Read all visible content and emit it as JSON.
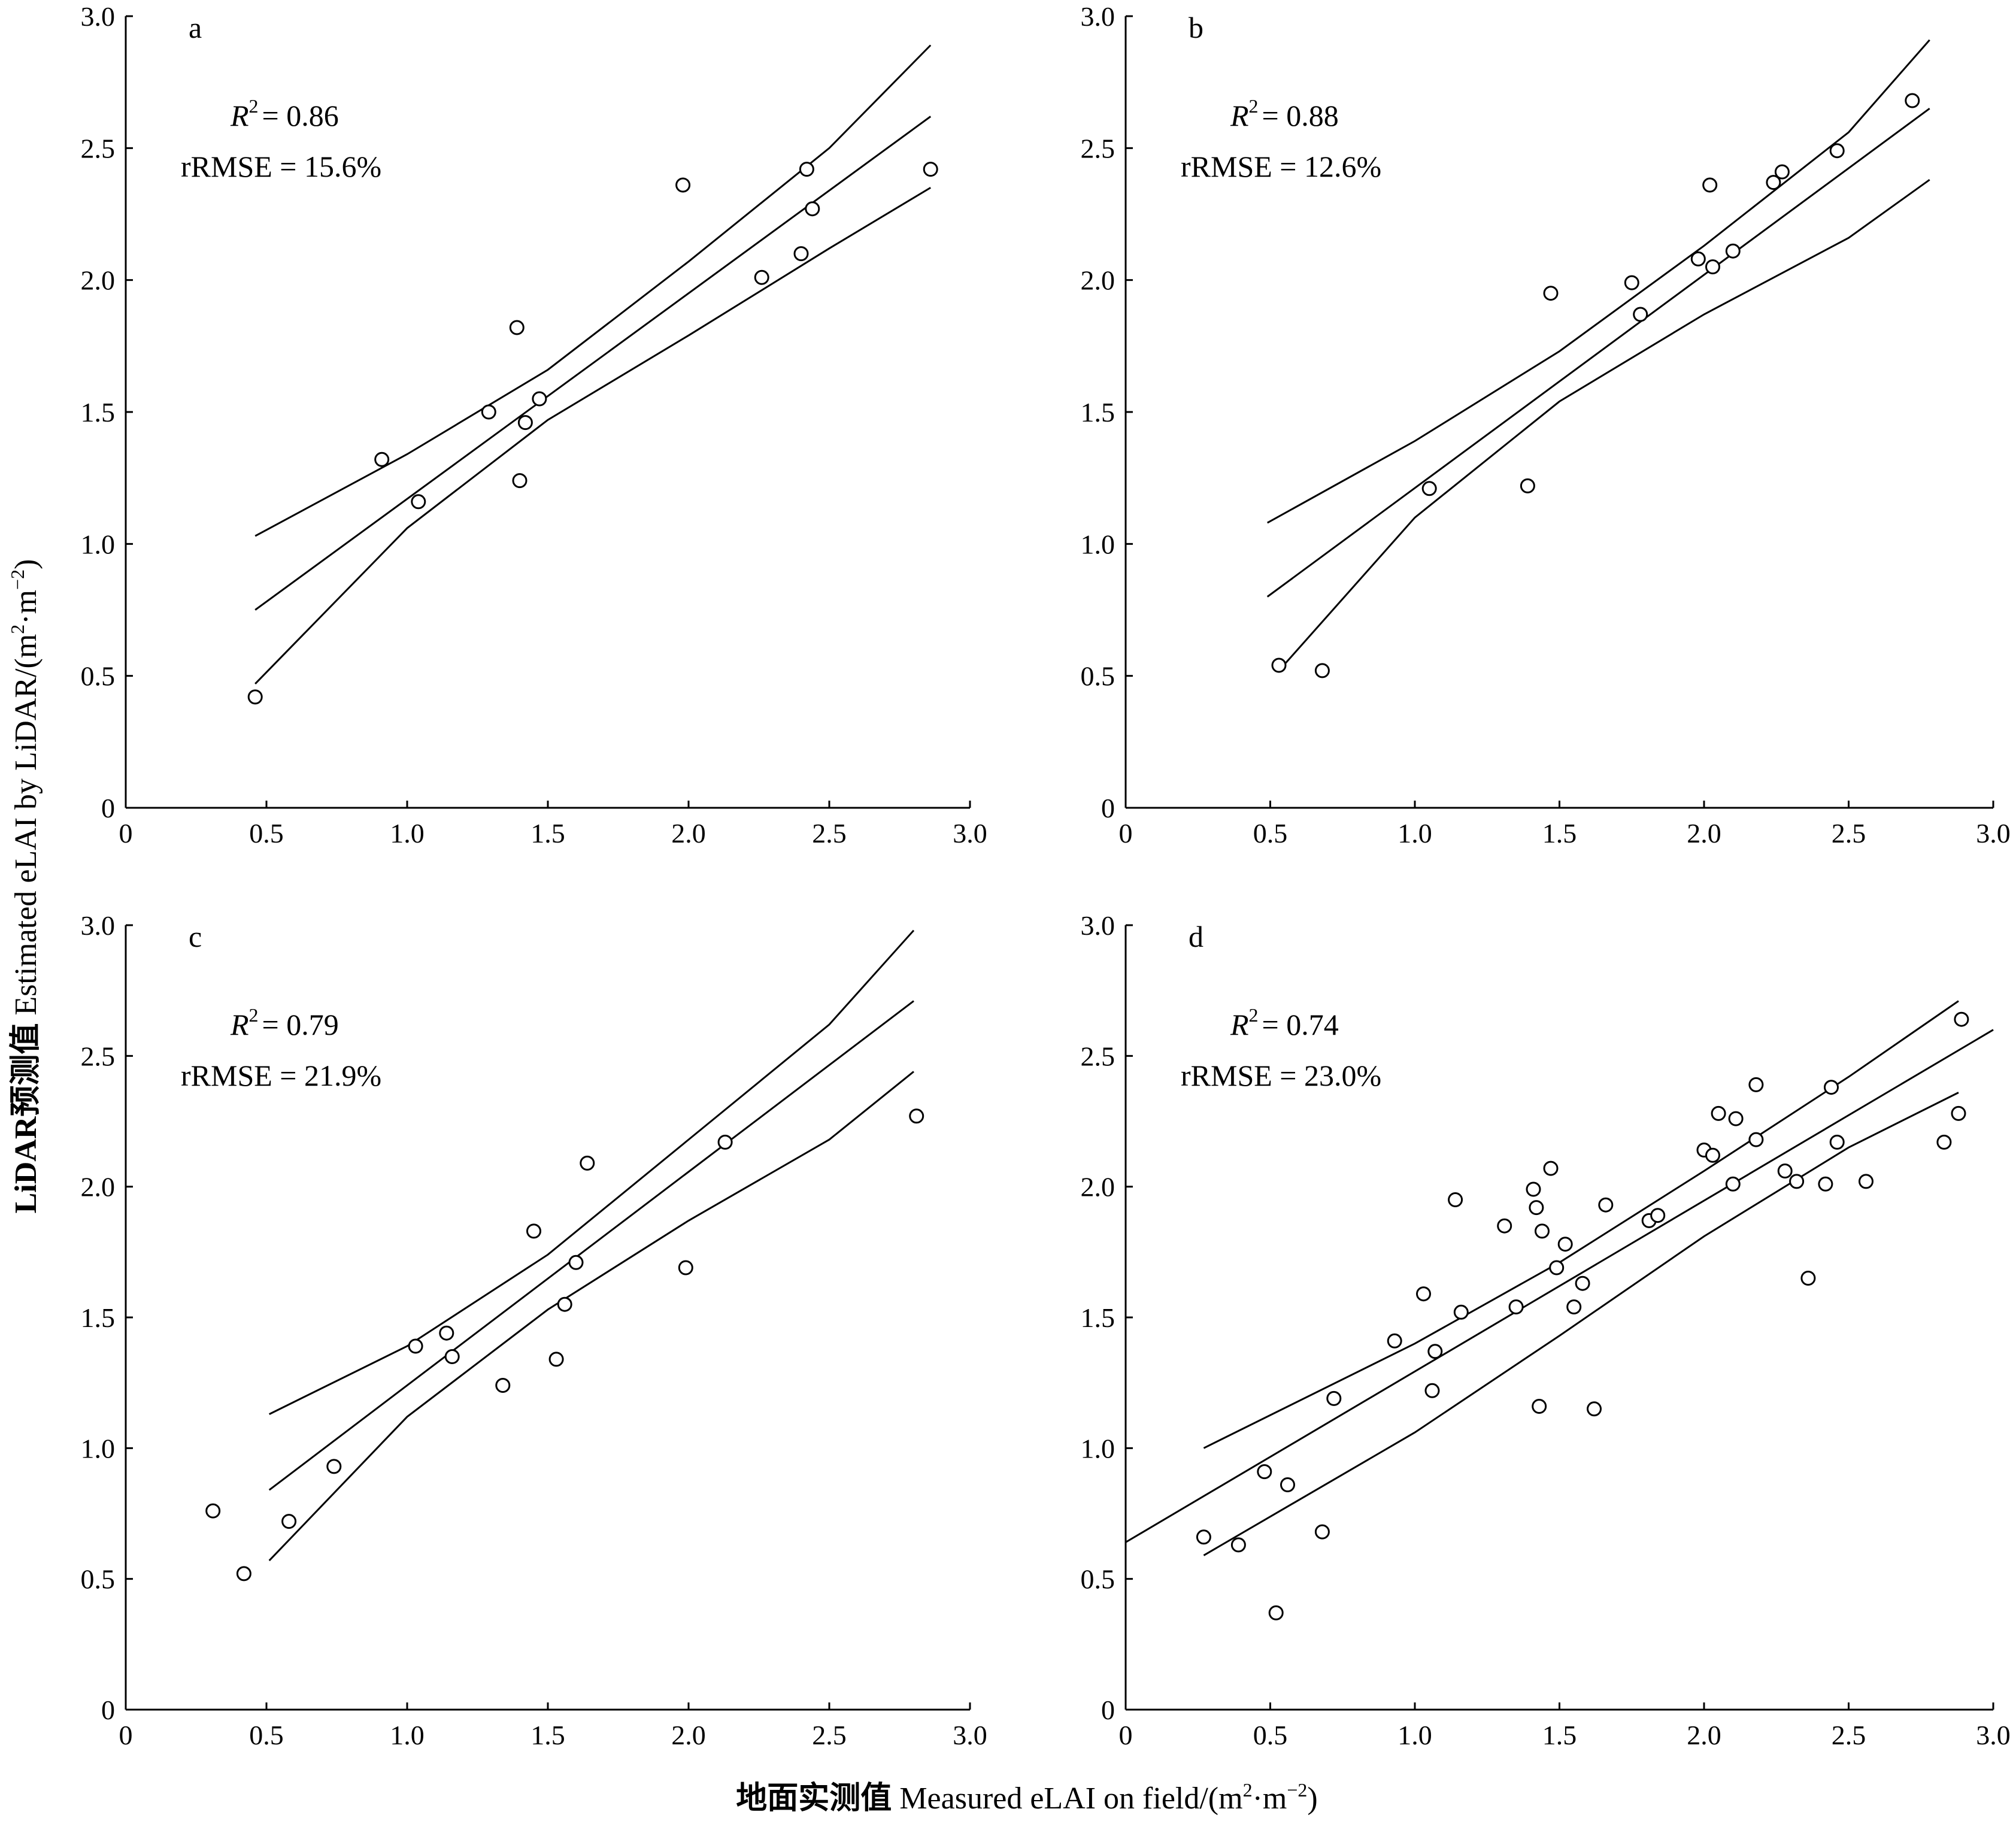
{
  "figure": {
    "xlabel_cn": "地面实测值",
    "xlabel_en": "Measured eLAI on field/(m",
    "ylabel_cn": "LiDAR预测值",
    "ylabel_en": "Estimated eLAI by LiDAR/(m",
    "unit_mid": "·m",
    "unit_sup": "2",
    "unit_sup_neg": "−2",
    "unit_close": ")"
  },
  "chart_data": [
    {
      "type": "scatter",
      "panel": "a",
      "r2_label": "R",
      "r2_value": "= 0.86",
      "rrmse": "rRMSE = 15.6%",
      "xlim": [
        0,
        3.0
      ],
      "ylim": [
        0,
        3.0
      ],
      "x_ticks": [
        "0",
        "0.5",
        "1.0",
        "1.5",
        "2.0",
        "2.5",
        "3.0"
      ],
      "y_ticks": [
        "0",
        "0.5",
        "1.0",
        "1.5",
        "2.0",
        "2.5",
        "3.0"
      ],
      "points": [
        [
          0.46,
          0.42
        ],
        [
          0.91,
          1.32
        ],
        [
          1.04,
          1.16
        ],
        [
          1.29,
          1.5
        ],
        [
          1.39,
          1.82
        ],
        [
          1.4,
          1.24
        ],
        [
          1.42,
          1.46
        ],
        [
          1.47,
          1.55
        ],
        [
          1.98,
          2.36
        ],
        [
          2.26,
          2.01
        ],
        [
          2.4,
          2.1
        ],
        [
          2.42,
          2.42
        ],
        [
          2.44,
          2.27
        ],
        [
          2.86,
          2.42
        ]
      ],
      "fit_line": [
        [
          0.46,
          0.75
        ],
        [
          2.86,
          2.62
        ]
      ],
      "upper_band": [
        [
          0.46,
          1.03
        ],
        [
          1.0,
          1.34
        ],
        [
          1.5,
          1.66
        ],
        [
          2.0,
          2.07
        ],
        [
          2.5,
          2.5
        ],
        [
          2.86,
          2.89
        ]
      ],
      "lower_band": [
        [
          0.46,
          0.47
        ],
        [
          1.0,
          1.06
        ],
        [
          1.5,
          1.47
        ],
        [
          2.0,
          1.79
        ],
        [
          2.5,
          2.12
        ],
        [
          2.86,
          2.35
        ]
      ]
    },
    {
      "type": "scatter",
      "panel": "b",
      "r2_label": "R",
      "r2_value": "= 0.88",
      "rrmse": "rRMSE = 12.6%",
      "xlim": [
        0,
        3.0
      ],
      "ylim": [
        0,
        3.0
      ],
      "x_ticks": [
        "0",
        "0.5",
        "1.0",
        "1.5",
        "2.0",
        "2.5",
        "3.0"
      ],
      "y_ticks": [
        "0",
        "0.5",
        "1.0",
        "1.5",
        "2.0",
        "2.5",
        "3.0"
      ],
      "points": [
        [
          0.53,
          0.54
        ],
        [
          0.68,
          0.52
        ],
        [
          1.05,
          1.21
        ],
        [
          1.39,
          1.22
        ],
        [
          1.47,
          1.95
        ],
        [
          1.75,
          1.99
        ],
        [
          1.78,
          1.87
        ],
        [
          1.98,
          2.08
        ],
        [
          2.02,
          2.36
        ],
        [
          2.03,
          2.05
        ],
        [
          2.1,
          2.11
        ],
        [
          2.24,
          2.37
        ],
        [
          2.27,
          2.41
        ],
        [
          2.46,
          2.49
        ],
        [
          2.72,
          2.68
        ]
      ],
      "fit_line": [
        [
          0.49,
          0.8
        ],
        [
          2.78,
          2.65
        ]
      ],
      "upper_band": [
        [
          0.49,
          1.08
        ],
        [
          1.0,
          1.39
        ],
        [
          1.5,
          1.73
        ],
        [
          2.0,
          2.13
        ],
        [
          2.5,
          2.56
        ],
        [
          2.78,
          2.91
        ]
      ],
      "lower_band": [
        [
          0.53,
          0.52
        ],
        [
          1.0,
          1.1
        ],
        [
          1.5,
          1.54
        ],
        [
          2.0,
          1.87
        ],
        [
          2.5,
          2.16
        ],
        [
          2.78,
          2.38
        ]
      ]
    },
    {
      "type": "scatter",
      "panel": "c",
      "r2_label": "R",
      "r2_value": "= 0.79",
      "rrmse": "rRMSE = 21.9%",
      "xlim": [
        0,
        3.0
      ],
      "ylim": [
        0,
        3.0
      ],
      "x_ticks": [
        "0",
        "0.5",
        "1.0",
        "1.5",
        "2.0",
        "2.5",
        "3.0"
      ],
      "y_ticks": [
        "0",
        "0.5",
        "1.0",
        "1.5",
        "2.0",
        "2.5",
        "3.0"
      ],
      "points": [
        [
          0.31,
          0.76
        ],
        [
          0.42,
          0.52
        ],
        [
          0.58,
          0.72
        ],
        [
          0.74,
          0.93
        ],
        [
          1.03,
          1.39
        ],
        [
          1.14,
          1.44
        ],
        [
          1.16,
          1.35
        ],
        [
          1.34,
          1.24
        ],
        [
          1.45,
          1.83
        ],
        [
          1.53,
          1.34
        ],
        [
          1.56,
          1.55
        ],
        [
          1.6,
          1.71
        ],
        [
          1.64,
          2.09
        ],
        [
          1.99,
          1.69
        ],
        [
          2.13,
          2.17
        ],
        [
          2.81,
          2.27
        ]
      ],
      "fit_line": [
        [
          0.51,
          0.84
        ],
        [
          2.8,
          2.71
        ]
      ],
      "upper_band": [
        [
          0.51,
          1.13
        ],
        [
          1.0,
          1.39
        ],
        [
          1.5,
          1.74
        ],
        [
          2.0,
          2.18
        ],
        [
          2.5,
          2.62
        ],
        [
          2.8,
          2.98
        ]
      ],
      "lower_band": [
        [
          0.51,
          0.57
        ],
        [
          1.0,
          1.12
        ],
        [
          1.5,
          1.53
        ],
        [
          2.0,
          1.87
        ],
        [
          2.5,
          2.18
        ],
        [
          2.8,
          2.44
        ]
      ]
    },
    {
      "type": "scatter",
      "panel": "d",
      "r2_label": "R",
      "r2_value": "= 0.74",
      "rrmse": "rRMSE = 23.0%",
      "xlim": [
        0,
        3.0
      ],
      "ylim": [
        0,
        3.0
      ],
      "x_ticks": [
        "0",
        "0.5",
        "1.0",
        "1.5",
        "2.0",
        "2.5",
        "3.0"
      ],
      "y_ticks": [
        "0",
        "0.5",
        "1.0",
        "1.5",
        "2.0",
        "2.5",
        "3.0"
      ],
      "points": [
        [
          0.27,
          0.66
        ],
        [
          0.39,
          0.63
        ],
        [
          0.48,
          0.91
        ],
        [
          0.52,
          0.37
        ],
        [
          0.56,
          0.86
        ],
        [
          0.68,
          0.68
        ],
        [
          0.72,
          1.19
        ],
        [
          0.93,
          1.41
        ],
        [
          1.03,
          1.59
        ],
        [
          1.06,
          1.22
        ],
        [
          1.07,
          1.37
        ],
        [
          1.14,
          1.95
        ],
        [
          1.16,
          1.52
        ],
        [
          1.31,
          1.85
        ],
        [
          1.35,
          1.54
        ],
        [
          1.41,
          1.99
        ],
        [
          1.42,
          1.92
        ],
        [
          1.43,
          1.16
        ],
        [
          1.44,
          1.83
        ],
        [
          1.47,
          2.07
        ],
        [
          1.49,
          1.69
        ],
        [
          1.52,
          1.78
        ],
        [
          1.55,
          1.54
        ],
        [
          1.58,
          1.63
        ],
        [
          1.62,
          1.15
        ],
        [
          1.66,
          1.93
        ],
        [
          1.81,
          1.87
        ],
        [
          1.84,
          1.89
        ],
        [
          2.0,
          2.14
        ],
        [
          2.03,
          2.12
        ],
        [
          2.05,
          2.28
        ],
        [
          2.1,
          2.01
        ],
        [
          2.11,
          2.26
        ],
        [
          2.18,
          2.18
        ],
        [
          2.18,
          2.39
        ],
        [
          2.28,
          2.06
        ],
        [
          2.32,
          2.02
        ],
        [
          2.36,
          1.65
        ],
        [
          2.42,
          2.01
        ],
        [
          2.44,
          2.38
        ],
        [
          2.46,
          2.17
        ],
        [
          2.56,
          2.02
        ],
        [
          2.83,
          2.17
        ],
        [
          2.88,
          2.28
        ],
        [
          2.89,
          2.64
        ]
      ],
      "fit_line": [
        [
          0,
          0.64
        ],
        [
          3.0,
          2.6
        ]
      ],
      "upper_band": [
        [
          0.27,
          1.0
        ],
        [
          1.0,
          1.4
        ],
        [
          1.5,
          1.71
        ],
        [
          2.0,
          2.06
        ],
        [
          2.5,
          2.42
        ],
        [
          2.88,
          2.71
        ]
      ],
      "lower_band": [
        [
          0.27,
          0.59
        ],
        [
          1.0,
          1.06
        ],
        [
          1.5,
          1.43
        ],
        [
          2.0,
          1.81
        ],
        [
          2.5,
          2.15
        ],
        [
          2.88,
          2.36
        ]
      ]
    }
  ]
}
